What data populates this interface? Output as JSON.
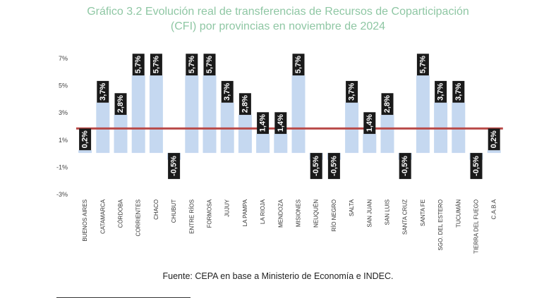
{
  "chart_data": {
    "type": "bar",
    "title_line1": "Gráfico 3.2 Evolución real de transferencias de Recursos de Coparticipación",
    "title_line2": "(CFI) por provincias en noviembre de 2024",
    "categories": [
      "BUENOS AIRES",
      "CATAMARCA",
      "CÓRDOBA",
      "CORRIENTES",
      "CHACO",
      "CHUBUT",
      "ENTRE RÍOS",
      "FORMOSA",
      "JUJUY",
      "LA PAMPA",
      "LA RIOJA",
      "MENDOZA",
      "MISIONES",
      "NEUQUÉN",
      "RÍO NEGRO",
      "SALTA",
      "SAN JUAN",
      "SAN LUIS",
      "SANTA CRUZ",
      "SANTA FE",
      "SGO. DEL ESTERO",
      "TUCUMÁN",
      "TIERRA DEL FUEGO",
      "C.A.B.A"
    ],
    "values": [
      0.2,
      3.7,
      2.8,
      5.7,
      5.7,
      -0.5,
      5.7,
      5.7,
      3.7,
      2.8,
      1.4,
      1.4,
      5.7,
      -0.5,
      -0.5,
      3.7,
      1.4,
      2.8,
      -0.5,
      5.7,
      3.7,
      3.7,
      -0.5,
      0.2
    ],
    "labels": [
      "0,2%",
      "3,7%",
      "2,8%",
      "5,7%",
      "5,7%",
      "-0,5%",
      "5,7%",
      "5,7%",
      "3,7%",
      "2,8%",
      "1,4%",
      "1,4%",
      "5,7%",
      "-0,5%",
      "-0,5%",
      "3,7%",
      "1,4%",
      "2,8%",
      "-0,5%",
      "5,7%",
      "3,7%",
      "3,7%",
      "-0,5%",
      "0,2%"
    ],
    "y_ticks": [
      {
        "value": 7,
        "label": "7%"
      },
      {
        "value": 5,
        "label": "5%"
      },
      {
        "value": 3,
        "label": "3%"
      },
      {
        "value": 1,
        "label": "1%"
      },
      {
        "value": -1,
        "label": "-1%"
      },
      {
        "value": -3,
        "label": "-3%"
      }
    ],
    "ylim": [
      -3,
      7
    ],
    "reference_line": 1.8,
    "grid": false,
    "colors": {
      "bar": "#c5d8f0",
      "reference_line": "#b94a48",
      "label_box": "#1a1a1a",
      "label_text": "#ffffff",
      "title": "#8fc7a4"
    }
  },
  "source": "Fuente: CEPA en base a Ministerio de Economía e INDEC."
}
